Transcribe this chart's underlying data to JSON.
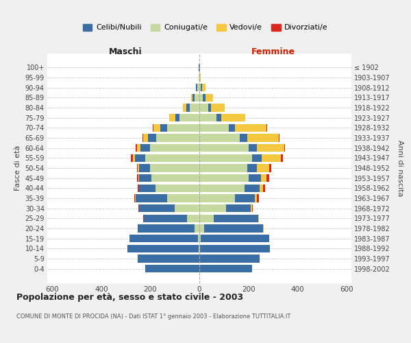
{
  "age_groups": [
    "0-4",
    "5-9",
    "10-14",
    "15-19",
    "20-24",
    "25-29",
    "30-34",
    "35-39",
    "40-44",
    "45-49",
    "50-54",
    "55-59",
    "60-64",
    "65-69",
    "70-74",
    "75-79",
    "80-84",
    "85-89",
    "90-94",
    "95-99",
    "100+"
  ],
  "birth_years": [
    "1998-2002",
    "1993-1997",
    "1988-1992",
    "1983-1987",
    "1978-1982",
    "1973-1977",
    "1968-1972",
    "1963-1967",
    "1958-1962",
    "1953-1957",
    "1948-1952",
    "1943-1947",
    "1938-1942",
    "1933-1937",
    "1928-1932",
    "1923-1927",
    "1918-1922",
    "1913-1917",
    "1908-1912",
    "1903-1907",
    "≤ 1902"
  ],
  "maschi": {
    "celibi": [
      220,
      250,
      290,
      280,
      230,
      175,
      145,
      130,
      65,
      50,
      45,
      42,
      40,
      35,
      28,
      18,
      12,
      8,
      5,
      2,
      2
    ],
    "coniugati": [
      0,
      0,
      2,
      5,
      20,
      50,
      100,
      130,
      180,
      195,
      200,
      220,
      200,
      175,
      130,
      80,
      40,
      20,
      8,
      2,
      0
    ],
    "vedovi": [
      0,
      0,
      0,
      0,
      2,
      1,
      1,
      2,
      2,
      3,
      5,
      10,
      15,
      20,
      30,
      25,
      15,
      5,
      2,
      0,
      0
    ],
    "divorziati": [
      0,
      0,
      0,
      0,
      0,
      2,
      3,
      4,
      5,
      5,
      5,
      8,
      5,
      2,
      3,
      0,
      0,
      0,
      0,
      0,
      0
    ]
  },
  "femmine": {
    "nubili": [
      215,
      245,
      285,
      280,
      240,
      180,
      100,
      80,
      60,
      50,
      40,
      38,
      35,
      30,
      25,
      18,
      12,
      10,
      5,
      2,
      2
    ],
    "coniugate": [
      0,
      0,
      2,
      5,
      20,
      60,
      110,
      145,
      185,
      200,
      195,
      215,
      200,
      165,
      120,
      70,
      35,
      15,
      5,
      2,
      0
    ],
    "vedove": [
      0,
      0,
      0,
      0,
      2,
      2,
      5,
      10,
      15,
      25,
      50,
      80,
      110,
      130,
      130,
      100,
      55,
      30,
      15,
      2,
      0
    ],
    "divorziate": [
      0,
      0,
      0,
      0,
      0,
      2,
      4,
      8,
      8,
      10,
      8,
      8,
      5,
      2,
      2,
      0,
      0,
      0,
      0,
      0,
      0
    ]
  },
  "colors": {
    "celibi_nubili": "#3a6ea5",
    "coniugati": "#c5d9a0",
    "vedovi": "#f5c842",
    "divorziati": "#d9281e"
  },
  "xlim": 620,
  "title": "Popolazione per età, sesso e stato civile - 2003",
  "subtitle": "COMUNE DI MONTE DI PROCIDA (NA) - Dati ISTAT 1° gennaio 2003 - Elaborazione TUTTITALIA.IT",
  "ylabel_left": "Fasce di età",
  "ylabel_right": "Anni di nascita",
  "xlabel_left": "Maschi",
  "xlabel_right": "Femmine",
  "bg_color": "#f0f0f0",
  "plot_bg": "#ffffff"
}
